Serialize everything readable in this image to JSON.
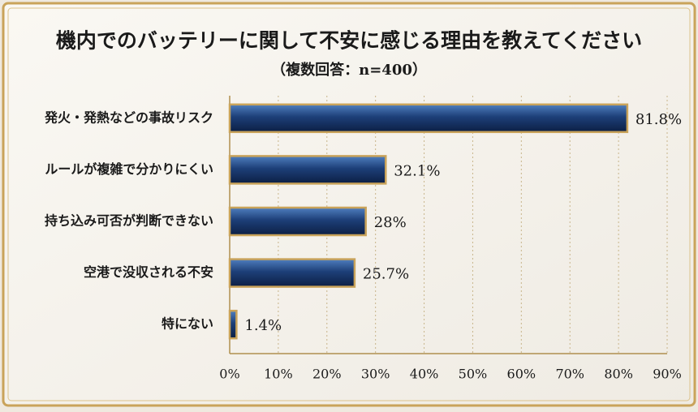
{
  "chart_data": {
    "type": "barh",
    "title": "機内でのバッテリーに関して不安に感じる理由を教えてください",
    "subtitle": "（複数回答：n=400）",
    "categories": [
      "発火・発熱などの事故リスク",
      "ルールが複雑で分かりにくい",
      "持ち込み可否が判断できない",
      "空港で没収される不安",
      "特にない"
    ],
    "values": [
      81.8,
      32.1,
      28,
      25.7,
      1.4
    ],
    "value_labels": [
      "81.8%",
      "32.1%",
      "28%",
      "25.7%",
      "1.4%"
    ],
    "color": "#1d3f78",
    "xlim": [
      0,
      90
    ],
    "xticks": [
      {
        "value": 0,
        "label": "0%"
      },
      {
        "value": 10,
        "label": "10%"
      },
      {
        "value": 20,
        "label": "20%"
      },
      {
        "value": 30,
        "label": "30%"
      },
      {
        "value": 40,
        "label": "40%"
      },
      {
        "value": 50,
        "label": "50%"
      },
      {
        "value": 60,
        "label": "60%"
      },
      {
        "value": 70,
        "label": "70%"
      },
      {
        "value": 80,
        "label": "80%"
      },
      {
        "value": 90,
        "label": "90%"
      }
    ],
    "grid": true
  }
}
